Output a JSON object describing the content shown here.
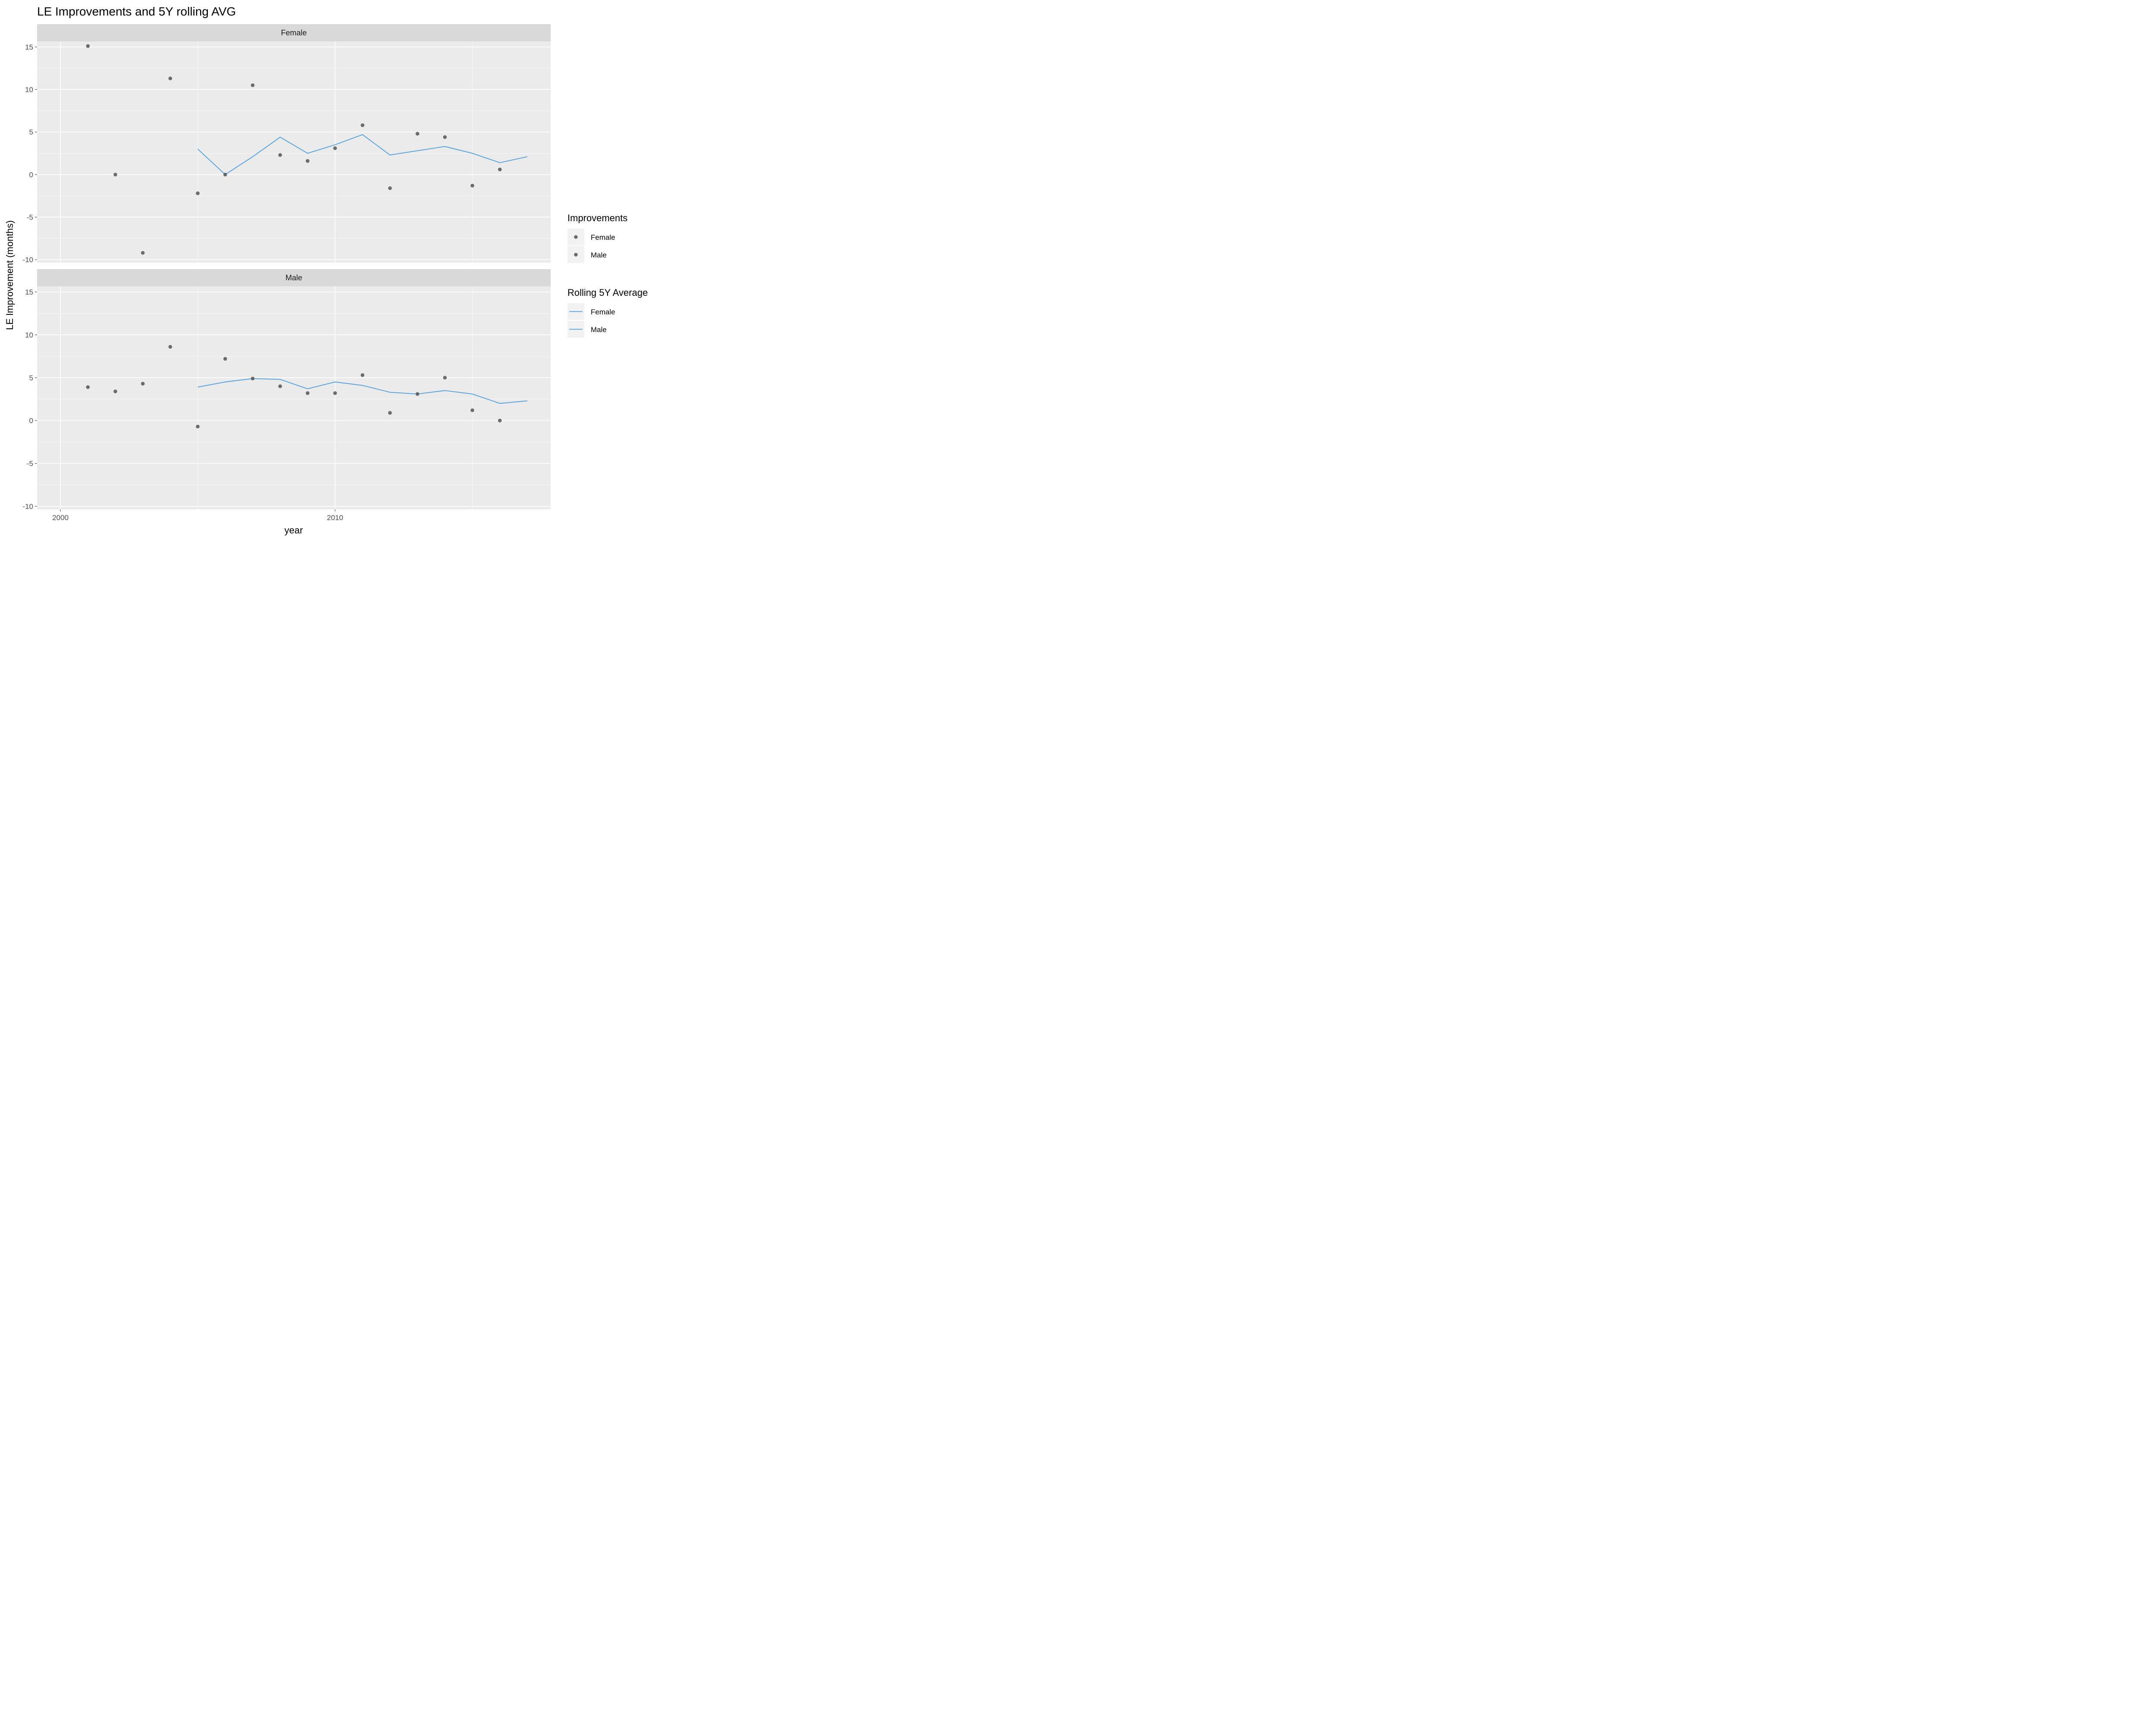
{
  "chart_data": {
    "type": "scatter",
    "title": "LE Improvements and 5Y rolling AVG",
    "xlabel": "year",
    "ylabel": "LE Improvement (months)",
    "xlim": [
      1999.15,
      2017.85
    ],
    "ylim": [
      -10.35,
      15.65
    ],
    "x_ticks": [
      2000,
      2010
    ],
    "x_tick_labels": [
      "2000",
      "2010"
    ],
    "y_ticks": [
      -10,
      -5,
      0,
      5,
      10,
      15
    ],
    "y_tick_labels": [
      "-10",
      "-5",
      "0",
      "5",
      "10",
      "15"
    ],
    "grid": true,
    "legend_position": "right",
    "point_color": "#555555",
    "line_color": "#4d9de0",
    "panel_bg": "#ebebeb",
    "strip_bg": "#d9d9d9",
    "facets": [
      {
        "label": "Female",
        "points": [
          {
            "x": 2001,
            "y": 15.1
          },
          {
            "x": 2002,
            "y": 0.0
          },
          {
            "x": 2003,
            "y": -9.2
          },
          {
            "x": 2004,
            "y": 11.3
          },
          {
            "x": 2005,
            "y": -2.2
          },
          {
            "x": 2006,
            "y": 0.0
          },
          {
            "x": 2007,
            "y": 10.5
          },
          {
            "x": 2008,
            "y": 2.3
          },
          {
            "x": 2009,
            "y": 1.6
          },
          {
            "x": 2010,
            "y": 3.1
          },
          {
            "x": 2011,
            "y": 5.8
          },
          {
            "x": 2012,
            "y": -1.6
          },
          {
            "x": 2013,
            "y": 4.8
          },
          {
            "x": 2014,
            "y": 4.4
          },
          {
            "x": 2015,
            "y": -1.3
          },
          {
            "x": 2016,
            "y": 0.6
          }
        ],
        "rolling": [
          {
            "x": 2005,
            "y": 3.0
          },
          {
            "x": 2006,
            "y": 0.0
          },
          {
            "x": 2007,
            "y": 2.1
          },
          {
            "x": 2008,
            "y": 4.4
          },
          {
            "x": 2009,
            "y": 2.5
          },
          {
            "x": 2010,
            "y": 3.5
          },
          {
            "x": 2011,
            "y": 4.7
          },
          {
            "x": 2012,
            "y": 2.3
          },
          {
            "x": 2013,
            "y": 2.8
          },
          {
            "x": 2014,
            "y": 3.3
          },
          {
            "x": 2015,
            "y": 2.5
          },
          {
            "x": 2016,
            "y": 1.4
          },
          {
            "x": 2017,
            "y": 2.1
          }
        ]
      },
      {
        "label": "Male",
        "points": [
          {
            "x": 2001,
            "y": 3.9
          },
          {
            "x": 2002,
            "y": 3.4
          },
          {
            "x": 2003,
            "y": 4.3
          },
          {
            "x": 2004,
            "y": 8.6
          },
          {
            "x": 2005,
            "y": -0.7
          },
          {
            "x": 2006,
            "y": 7.2
          },
          {
            "x": 2007,
            "y": 4.9
          },
          {
            "x": 2008,
            "y": 4.0
          },
          {
            "x": 2009,
            "y": 3.2
          },
          {
            "x": 2010,
            "y": 3.2
          },
          {
            "x": 2011,
            "y": 5.3
          },
          {
            "x": 2012,
            "y": 0.9
          },
          {
            "x": 2013,
            "y": 3.1
          },
          {
            "x": 2014,
            "y": 5.0
          },
          {
            "x": 2015,
            "y": 1.2
          },
          {
            "x": 2016,
            "y": 0.0
          }
        ],
        "rolling": [
          {
            "x": 2005,
            "y": 3.9
          },
          {
            "x": 2006,
            "y": 4.5
          },
          {
            "x": 2007,
            "y": 4.9
          },
          {
            "x": 2008,
            "y": 4.8
          },
          {
            "x": 2009,
            "y": 3.7
          },
          {
            "x": 2010,
            "y": 4.5
          },
          {
            "x": 2011,
            "y": 4.1
          },
          {
            "x": 2012,
            "y": 3.3
          },
          {
            "x": 2013,
            "y": 3.1
          },
          {
            "x": 2014,
            "y": 3.5
          },
          {
            "x": 2015,
            "y": 3.1
          },
          {
            "x": 2016,
            "y": 2.0
          },
          {
            "x": 2017,
            "y": 2.3
          }
        ]
      }
    ],
    "legends": [
      {
        "title": "Improvements",
        "kind": "point",
        "entries": [
          "Female",
          "Male"
        ]
      },
      {
        "title": "Rolling 5Y Average",
        "kind": "line",
        "entries": [
          "Female",
          "Male"
        ]
      }
    ]
  }
}
